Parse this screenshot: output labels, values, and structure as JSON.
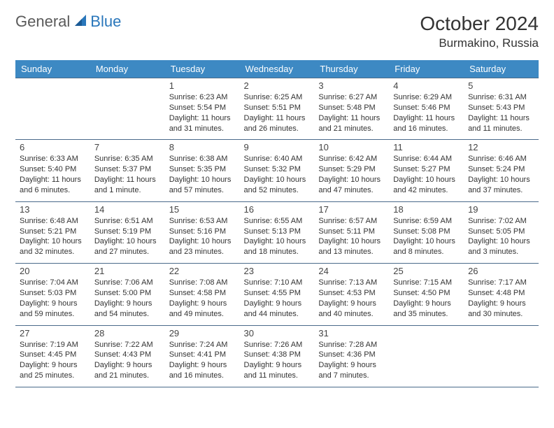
{
  "logo": {
    "part1": "General",
    "part2": "Blue"
  },
  "title": "October 2024",
  "location": "Burmakino, Russia",
  "colors": {
    "header_bg": "#3d89c3",
    "header_text": "#ffffff",
    "border": "#4a6a8a",
    "logo_gray": "#5a5a5a",
    "logo_blue": "#2a77bb",
    "text": "#333333",
    "background": "#ffffff"
  },
  "day_headers": [
    "Sunday",
    "Monday",
    "Tuesday",
    "Wednesday",
    "Thursday",
    "Friday",
    "Saturday"
  ],
  "weeks": [
    [
      {
        "day": "",
        "lines": []
      },
      {
        "day": "",
        "lines": []
      },
      {
        "day": "1",
        "lines": [
          "Sunrise: 6:23 AM",
          "Sunset: 5:54 PM",
          "Daylight: 11 hours",
          "and 31 minutes."
        ]
      },
      {
        "day": "2",
        "lines": [
          "Sunrise: 6:25 AM",
          "Sunset: 5:51 PM",
          "Daylight: 11 hours",
          "and 26 minutes."
        ]
      },
      {
        "day": "3",
        "lines": [
          "Sunrise: 6:27 AM",
          "Sunset: 5:48 PM",
          "Daylight: 11 hours",
          "and 21 minutes."
        ]
      },
      {
        "day": "4",
        "lines": [
          "Sunrise: 6:29 AM",
          "Sunset: 5:46 PM",
          "Daylight: 11 hours",
          "and 16 minutes."
        ]
      },
      {
        "day": "5",
        "lines": [
          "Sunrise: 6:31 AM",
          "Sunset: 5:43 PM",
          "Daylight: 11 hours",
          "and 11 minutes."
        ]
      }
    ],
    [
      {
        "day": "6",
        "lines": [
          "Sunrise: 6:33 AM",
          "Sunset: 5:40 PM",
          "Daylight: 11 hours",
          "and 6 minutes."
        ]
      },
      {
        "day": "7",
        "lines": [
          "Sunrise: 6:35 AM",
          "Sunset: 5:37 PM",
          "Daylight: 11 hours",
          "and 1 minute."
        ]
      },
      {
        "day": "8",
        "lines": [
          "Sunrise: 6:38 AM",
          "Sunset: 5:35 PM",
          "Daylight: 10 hours",
          "and 57 minutes."
        ]
      },
      {
        "day": "9",
        "lines": [
          "Sunrise: 6:40 AM",
          "Sunset: 5:32 PM",
          "Daylight: 10 hours",
          "and 52 minutes."
        ]
      },
      {
        "day": "10",
        "lines": [
          "Sunrise: 6:42 AM",
          "Sunset: 5:29 PM",
          "Daylight: 10 hours",
          "and 47 minutes."
        ]
      },
      {
        "day": "11",
        "lines": [
          "Sunrise: 6:44 AM",
          "Sunset: 5:27 PM",
          "Daylight: 10 hours",
          "and 42 minutes."
        ]
      },
      {
        "day": "12",
        "lines": [
          "Sunrise: 6:46 AM",
          "Sunset: 5:24 PM",
          "Daylight: 10 hours",
          "and 37 minutes."
        ]
      }
    ],
    [
      {
        "day": "13",
        "lines": [
          "Sunrise: 6:48 AM",
          "Sunset: 5:21 PM",
          "Daylight: 10 hours",
          "and 32 minutes."
        ]
      },
      {
        "day": "14",
        "lines": [
          "Sunrise: 6:51 AM",
          "Sunset: 5:19 PM",
          "Daylight: 10 hours",
          "and 27 minutes."
        ]
      },
      {
        "day": "15",
        "lines": [
          "Sunrise: 6:53 AM",
          "Sunset: 5:16 PM",
          "Daylight: 10 hours",
          "and 23 minutes."
        ]
      },
      {
        "day": "16",
        "lines": [
          "Sunrise: 6:55 AM",
          "Sunset: 5:13 PM",
          "Daylight: 10 hours",
          "and 18 minutes."
        ]
      },
      {
        "day": "17",
        "lines": [
          "Sunrise: 6:57 AM",
          "Sunset: 5:11 PM",
          "Daylight: 10 hours",
          "and 13 minutes."
        ]
      },
      {
        "day": "18",
        "lines": [
          "Sunrise: 6:59 AM",
          "Sunset: 5:08 PM",
          "Daylight: 10 hours",
          "and 8 minutes."
        ]
      },
      {
        "day": "19",
        "lines": [
          "Sunrise: 7:02 AM",
          "Sunset: 5:05 PM",
          "Daylight: 10 hours",
          "and 3 minutes."
        ]
      }
    ],
    [
      {
        "day": "20",
        "lines": [
          "Sunrise: 7:04 AM",
          "Sunset: 5:03 PM",
          "Daylight: 9 hours",
          "and 59 minutes."
        ]
      },
      {
        "day": "21",
        "lines": [
          "Sunrise: 7:06 AM",
          "Sunset: 5:00 PM",
          "Daylight: 9 hours",
          "and 54 minutes."
        ]
      },
      {
        "day": "22",
        "lines": [
          "Sunrise: 7:08 AM",
          "Sunset: 4:58 PM",
          "Daylight: 9 hours",
          "and 49 minutes."
        ]
      },
      {
        "day": "23",
        "lines": [
          "Sunrise: 7:10 AM",
          "Sunset: 4:55 PM",
          "Daylight: 9 hours",
          "and 44 minutes."
        ]
      },
      {
        "day": "24",
        "lines": [
          "Sunrise: 7:13 AM",
          "Sunset: 4:53 PM",
          "Daylight: 9 hours",
          "and 40 minutes."
        ]
      },
      {
        "day": "25",
        "lines": [
          "Sunrise: 7:15 AM",
          "Sunset: 4:50 PM",
          "Daylight: 9 hours",
          "and 35 minutes."
        ]
      },
      {
        "day": "26",
        "lines": [
          "Sunrise: 7:17 AM",
          "Sunset: 4:48 PM",
          "Daylight: 9 hours",
          "and 30 minutes."
        ]
      }
    ],
    [
      {
        "day": "27",
        "lines": [
          "Sunrise: 7:19 AM",
          "Sunset: 4:45 PM",
          "Daylight: 9 hours",
          "and 25 minutes."
        ]
      },
      {
        "day": "28",
        "lines": [
          "Sunrise: 7:22 AM",
          "Sunset: 4:43 PM",
          "Daylight: 9 hours",
          "and 21 minutes."
        ]
      },
      {
        "day": "29",
        "lines": [
          "Sunrise: 7:24 AM",
          "Sunset: 4:41 PM",
          "Daylight: 9 hours",
          "and 16 minutes."
        ]
      },
      {
        "day": "30",
        "lines": [
          "Sunrise: 7:26 AM",
          "Sunset: 4:38 PM",
          "Daylight: 9 hours",
          "and 11 minutes."
        ]
      },
      {
        "day": "31",
        "lines": [
          "Sunrise: 7:28 AM",
          "Sunset: 4:36 PM",
          "Daylight: 9 hours",
          "and 7 minutes."
        ]
      },
      {
        "day": "",
        "lines": []
      },
      {
        "day": "",
        "lines": []
      }
    ]
  ]
}
